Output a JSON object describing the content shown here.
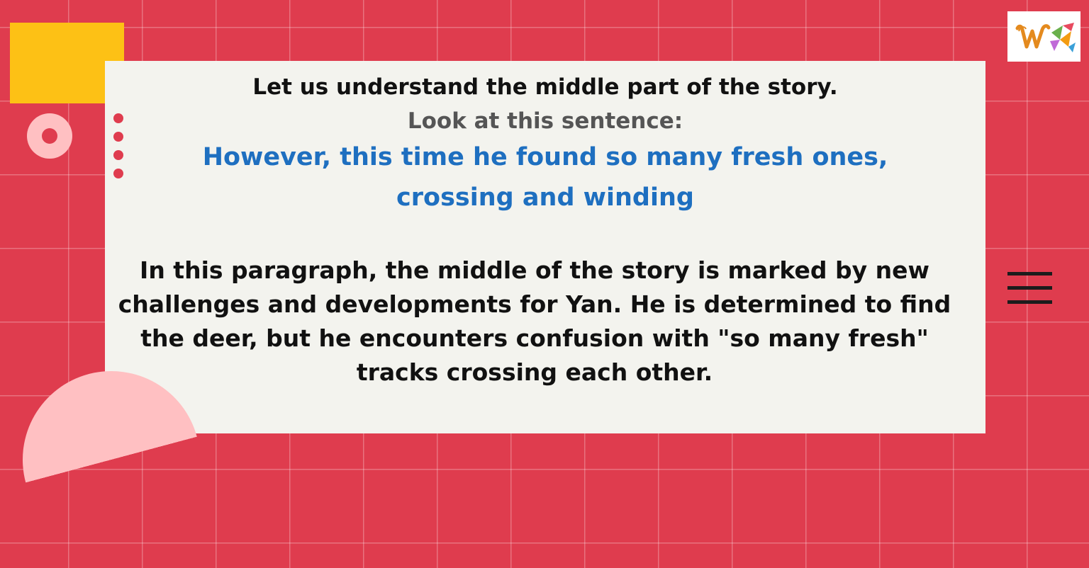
{
  "slide": {
    "heading": "Let us understand the middle part of the story.",
    "subheading": "Look at this sentence:",
    "quote_line_1": "However, this time he found so many fresh ones,",
    "quote_line_2": "crossing and winding",
    "paragraph": "In this paragraph, the middle of the story is marked by new challenges and developments for Yan. He is determined to find the deer, but he encounters confusion with \"so many fresh\" tracks crossing each other."
  },
  "colors": {
    "background": "#df3c4e",
    "card": "#f3f3ee",
    "accent_yellow": "#fdc115",
    "accent_pink": "#ffc0c2",
    "quote_blue": "#1e6fc0",
    "heading_dark": "#111111",
    "subheading_gray": "#555555"
  },
  "icons": {
    "logo": "w-logo-icon",
    "menu": "hamburger-menu-icon"
  }
}
